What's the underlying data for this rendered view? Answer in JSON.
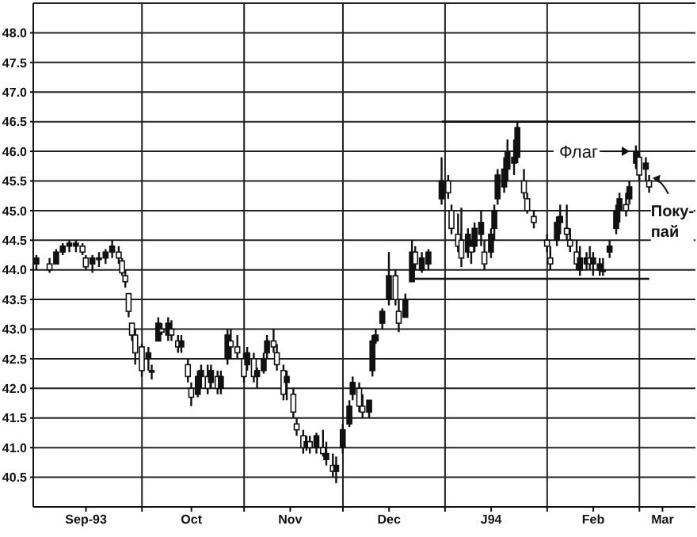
{
  "chart_data": {
    "type": "candlestick",
    "color": "#111111",
    "x": [
      "1993-08-30",
      "1993-09-03",
      "1993-09-05",
      "1993-09-07",
      "1993-09-09",
      "1993-09-11",
      "1993-09-13",
      "1993-09-14",
      "1993-09-16",
      "1993-09-18",
      "1993-09-20",
      "1993-09-22",
      "1993-09-24",
      "1993-09-25",
      "1993-09-26",
      "1993-09-27",
      "1993-09-28",
      "1993-09-29",
      "1993-10-01",
      "1993-10-03",
      "1993-10-04",
      "1993-10-06",
      "1993-10-07",
      "1993-10-09",
      "1993-10-10",
      "1993-10-12",
      "1993-10-13",
      "1993-10-15",
      "1993-10-16",
      "1993-10-18",
      "1993-10-19",
      "1993-10-21",
      "1993-10-22",
      "1993-10-24",
      "1993-10-25",
      "1993-10-27",
      "1993-10-28",
      "1993-10-30",
      "1993-11-01",
      "1993-11-02",
      "1993-11-04",
      "1993-11-05",
      "1993-11-07",
      "1993-11-08",
      "1993-11-10",
      "1993-11-11",
      "1993-11-13",
      "1993-11-14",
      "1993-11-16",
      "1993-11-17",
      "1993-11-19",
      "1993-11-20",
      "1993-11-21",
      "1993-11-23",
      "1993-11-25",
      "1993-11-26",
      "1993-11-28",
      "1993-11-29",
      "1993-12-01",
      "1993-12-03",
      "1993-12-04",
      "1993-12-06",
      "1993-12-07",
      "1993-12-09",
      "1993-12-10",
      "1993-12-11",
      "1993-12-13",
      "1993-12-15",
      "1993-12-17",
      "1993-12-18",
      "1993-12-20",
      "1993-12-22",
      "1993-12-23",
      "1993-12-25",
      "1993-12-27",
      "1993-12-31",
      "1994-01-02",
      "1994-01-03",
      "1994-01-05",
      "1994-01-06",
      "1994-01-08",
      "1994-01-09",
      "1994-01-10",
      "1994-01-12",
      "1994-01-13",
      "1994-01-15",
      "1994-01-16",
      "1994-01-17",
      "1994-01-19",
      "1994-01-20",
      "1994-01-22",
      "1994-01-23",
      "1994-01-25",
      "1994-01-26",
      "1994-01-28",
      "1994-02-01",
      "1994-02-02",
      "1994-02-04",
      "1994-02-05",
      "1994-02-07",
      "1994-02-08",
      "1994-02-10",
      "1994-02-11",
      "1994-02-13",
      "1994-02-14",
      "1994-02-15",
      "1994-02-17",
      "1994-02-18",
      "1994-02-20",
      "1994-02-22",
      "1994-02-23",
      "1994-02-25",
      "1994-02-26",
      "1994-02-28",
      "1994-03-01",
      "1994-03-03",
      "1994-03-04"
    ],
    "ohlc": [
      [
        44.1,
        44.25,
        44.0,
        44.2
      ],
      [
        44.1,
        44.2,
        43.95,
        44.0
      ],
      [
        44.1,
        44.35,
        44.1,
        44.3
      ],
      [
        44.3,
        44.45,
        44.25,
        44.4
      ],
      [
        44.4,
        44.5,
        44.3,
        44.45
      ],
      [
        44.4,
        44.5,
        44.3,
        44.45
      ],
      [
        44.4,
        44.45,
        44.25,
        44.3
      ],
      [
        44.2,
        44.25,
        44.0,
        44.05
      ],
      [
        44.1,
        44.25,
        43.95,
        44.2
      ],
      [
        44.2,
        44.3,
        44.05,
        44.2
      ],
      [
        44.2,
        44.35,
        44.1,
        44.3
      ],
      [
        44.3,
        44.5,
        44.2,
        44.4
      ],
      [
        44.3,
        44.4,
        44.1,
        44.2
      ],
      [
        44.15,
        44.2,
        43.9,
        43.95
      ],
      [
        43.9,
        44.0,
        43.7,
        43.8
      ],
      [
        43.6,
        43.6,
        43.2,
        43.3
      ],
      [
        43.1,
        43.1,
        42.8,
        42.9
      ],
      [
        42.9,
        43.0,
        42.4,
        42.6
      ],
      [
        42.7,
        42.75,
        42.2,
        42.3
      ],
      [
        42.5,
        42.7,
        42.3,
        42.6
      ],
      [
        42.3,
        42.4,
        42.15,
        42.3
      ],
      [
        42.8,
        43.2,
        42.8,
        43.1
      ],
      [
        43.0,
        43.1,
        42.9,
        42.95
      ],
      [
        42.9,
        43.2,
        42.8,
        43.1
      ],
      [
        43.0,
        43.15,
        42.8,
        42.9
      ],
      [
        42.8,
        42.9,
        42.6,
        42.7
      ],
      [
        42.7,
        42.9,
        42.6,
        42.8
      ],
      [
        42.4,
        42.5,
        42.1,
        42.2
      ],
      [
        42.0,
        42.1,
        41.7,
        41.85
      ],
      [
        41.9,
        42.3,
        41.85,
        42.2
      ],
      [
        42.2,
        42.4,
        42.0,
        42.3
      ],
      [
        42.2,
        42.4,
        41.9,
        42.0
      ],
      [
        42.1,
        42.4,
        42.0,
        42.3
      ],
      [
        42.2,
        42.3,
        41.9,
        42.0
      ],
      [
        42.0,
        42.3,
        41.9,
        42.2
      ],
      [
        42.5,
        43.0,
        42.4,
        42.9
      ],
      [
        42.8,
        43.0,
        42.5,
        42.7
      ],
      [
        42.7,
        42.9,
        42.5,
        42.6
      ],
      [
        42.5,
        42.6,
        42.1,
        42.2
      ],
      [
        42.4,
        42.7,
        42.3,
        42.6
      ],
      [
        42.5,
        42.6,
        42.1,
        42.2
      ],
      [
        42.2,
        42.35,
        42.0,
        42.3
      ],
      [
        42.3,
        42.6,
        42.25,
        42.5
      ],
      [
        42.6,
        42.9,
        42.5,
        42.8
      ],
      [
        42.8,
        43.0,
        42.6,
        42.7
      ],
      [
        42.6,
        42.75,
        42.3,
        42.4
      ],
      [
        42.3,
        42.4,
        41.8,
        41.9
      ],
      [
        42.1,
        42.3,
        41.8,
        42.2
      ],
      [
        41.9,
        42.0,
        41.5,
        41.6
      ],
      [
        41.4,
        41.5,
        41.2,
        41.3
      ],
      [
        41.2,
        41.3,
        40.9,
        41.0
      ],
      [
        41.0,
        41.2,
        40.95,
        41.1
      ],
      [
        41.1,
        41.2,
        40.9,
        41.0
      ],
      [
        41.0,
        41.25,
        40.9,
        41.2
      ],
      [
        41.0,
        41.3,
        40.85,
        40.9
      ],
      [
        40.8,
        41.1,
        40.7,
        40.9
      ],
      [
        40.7,
        40.9,
        40.5,
        40.6
      ],
      [
        40.6,
        40.85,
        40.4,
        40.7
      ],
      [
        41.0,
        41.4,
        40.9,
        41.3
      ],
      [
        41.4,
        41.8,
        41.35,
        41.7
      ],
      [
        41.9,
        42.2,
        41.8,
        42.1
      ],
      [
        42.0,
        42.1,
        41.6,
        41.7
      ],
      [
        41.7,
        41.9,
        41.5,
        41.6
      ],
      [
        41.6,
        41.8,
        41.5,
        41.8
      ],
      [
        42.3,
        42.9,
        42.2,
        42.8
      ],
      [
        42.8,
        43.0,
        42.75,
        42.9
      ],
      [
        43.1,
        43.35,
        43.0,
        43.3
      ],
      [
        43.5,
        44.3,
        43.4,
        43.9
      ],
      [
        43.9,
        44.0,
        43.4,
        43.5
      ],
      [
        43.3,
        43.5,
        42.95,
        43.1
      ],
      [
        43.2,
        43.6,
        43.2,
        43.5
      ],
      [
        43.8,
        44.5,
        43.8,
        44.3
      ],
      [
        44.3,
        44.4,
        44.0,
        44.1
      ],
      [
        44.0,
        44.3,
        43.95,
        44.2
      ],
      [
        44.1,
        44.35,
        44.0,
        44.3
      ],
      [
        45.2,
        45.9,
        45.1,
        45.5
      ],
      [
        45.5,
        45.6,
        45.2,
        45.3
      ],
      [
        45.0,
        45.1,
        44.6,
        44.7
      ],
      [
        44.6,
        44.95,
        44.3,
        44.4
      ],
      [
        44.5,
        45.05,
        44.05,
        44.2
      ],
      [
        44.3,
        44.7,
        44.2,
        44.6
      ],
      [
        44.4,
        44.5,
        44.1,
        44.3
      ],
      [
        44.4,
        44.8,
        44.3,
        44.7
      ],
      [
        44.6,
        45.0,
        44.4,
        44.8
      ],
      [
        44.3,
        44.5,
        44.0,
        44.1
      ],
      [
        44.3,
        44.7,
        44.2,
        44.6
      ],
      [
        44.7,
        45.1,
        44.5,
        45.0
      ],
      [
        45.2,
        45.7,
        45.1,
        45.6
      ],
      [
        45.4,
        45.9,
        45.3,
        45.7
      ],
      [
        45.7,
        46.2,
        45.5,
        46.0
      ],
      [
        45.8,
        46.2,
        45.6,
        45.9
      ],
      [
        45.9,
        46.5,
        45.8,
        46.4
      ],
      [
        45.5,
        45.7,
        45.2,
        45.3
      ],
      [
        45.2,
        45.3,
        44.95,
        45.0
      ],
      [
        44.9,
        45.0,
        44.7,
        44.8
      ],
      [
        44.5,
        44.6,
        44.3,
        44.4
      ],
      [
        44.2,
        44.4,
        44.0,
        44.1
      ],
      [
        44.5,
        44.9,
        44.4,
        44.8
      ],
      [
        44.8,
        45.1,
        44.6,
        44.9
      ],
      [
        44.7,
        45.1,
        44.5,
        44.6
      ],
      [
        44.5,
        44.7,
        44.3,
        44.4
      ],
      [
        44.3,
        44.5,
        44.0,
        44.1
      ],
      [
        44.0,
        44.4,
        43.9,
        44.2
      ],
      [
        44.1,
        44.3,
        44.0,
        44.2
      ],
      [
        44.2,
        44.4,
        44.0,
        44.1
      ],
      [
        44.1,
        44.3,
        43.9,
        44.2
      ],
      [
        44.0,
        44.2,
        43.9,
        44.1
      ],
      [
        44.0,
        44.2,
        43.9,
        44.0
      ],
      [
        44.3,
        44.5,
        44.2,
        44.4
      ],
      [
        44.7,
        45.1,
        44.6,
        45.0
      ],
      [
        45.0,
        45.3,
        44.8,
        45.2
      ],
      [
        45.1,
        45.3,
        44.9,
        45.0
      ],
      [
        45.2,
        45.5,
        45.1,
        45.4
      ],
      [
        45.8,
        46.1,
        45.7,
        46.0
      ],
      [
        45.9,
        46.0,
        45.5,
        45.6
      ],
      [
        45.7,
        45.9,
        45.5,
        45.8
      ],
      [
        45.5,
        45.6,
        45.3,
        45.4
      ]
    ],
    "series": [
      {
        "type": "line",
        "color": "#111111",
        "x": [
          "1993-12-31",
          "1994-03-01"
        ],
        "values": [
          46.5,
          46.5
        ]
      },
      {
        "type": "line",
        "color": "#111111",
        "x": [
          "1993-12-22",
          "1994-03-04"
        ],
        "values": [
          43.85,
          43.85
        ]
      }
    ],
    "xlim": [
      "1993-08-29",
      "1994-03-18"
    ],
    "xticks": [
      {
        "value": "1993-09-14",
        "label": "Sep-93"
      },
      {
        "value": "1993-10-01",
        "label": null
      },
      {
        "value": "1993-10-16",
        "label": "Oct"
      },
      {
        "value": "1993-11-01",
        "label": null
      },
      {
        "value": "1993-11-15",
        "label": "Nov"
      },
      {
        "value": "1993-12-01",
        "label": null
      },
      {
        "value": "1993-12-15",
        "label": "Dec"
      },
      {
        "value": "1994-01-01",
        "label": null
      },
      {
        "value": "1994-01-15",
        "label": "J94"
      },
      {
        "value": "1994-02-01",
        "label": null
      },
      {
        "value": "1994-02-15",
        "label": "Feb"
      },
      {
        "value": "1994-03-01",
        "label": null
      },
      {
        "value": "1994-03-08",
        "label": "Mar"
      }
    ],
    "ylim": [
      40,
      48.5
    ],
    "yticks": [
      40.5,
      {
        "value": 41,
        "label": "41.0"
      },
      41.5,
      {
        "value": 42,
        "label": "42.0"
      },
      42.5,
      {
        "value": 43,
        "label": "43.0"
      },
      43.5,
      {
        "value": 44,
        "label": "44.0"
      },
      44.5,
      {
        "value": 45,
        "label": "45.0"
      },
      45.5,
      {
        "value": 46,
        "label": "46.0"
      },
      46.5,
      {
        "value": 47,
        "label": "47.0"
      },
      47.5,
      {
        "value": 48,
        "label": "48.0"
      }
    ],
    "grid": true,
    "annotations": [
      {
        "text": "Флаг",
        "x": "1994-02-27",
        "y": 46.0
      },
      {
        "text": "Поку-\nпай",
        "x": "1994-03-04",
        "y": 45.55
      }
    ]
  }
}
